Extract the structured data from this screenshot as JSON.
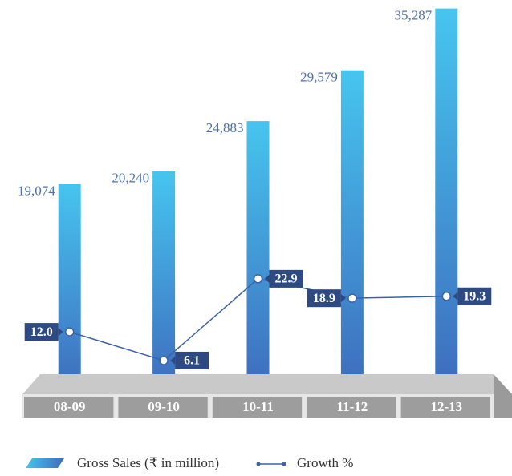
{
  "chart_data": {
    "type": "bar",
    "categories": [
      "08-09",
      "09-10",
      "10-11",
      "11-12",
      "12-13"
    ],
    "series": [
      {
        "name": "Gross Sales (₹ in million)",
        "type": "bar",
        "color": "#4380c9",
        "values": [
          19074,
          20240,
          24883,
          29579,
          35287
        ],
        "value_labels": [
          "19,074",
          "20,240",
          "24,883",
          "29,579",
          "35,287"
        ]
      },
      {
        "name": "Growth %",
        "type": "line",
        "axis": "y2",
        "color": "#3a62a8",
        "values": [
          12.0,
          6.1,
          22.9,
          18.9,
          19.3
        ],
        "value_labels": [
          "12.0",
          "6.1",
          "22.9",
          "18.9",
          "19.3"
        ]
      }
    ],
    "ylim": [
      0,
      36000
    ],
    "y2lim": [
      0,
      80
    ]
  }
}
